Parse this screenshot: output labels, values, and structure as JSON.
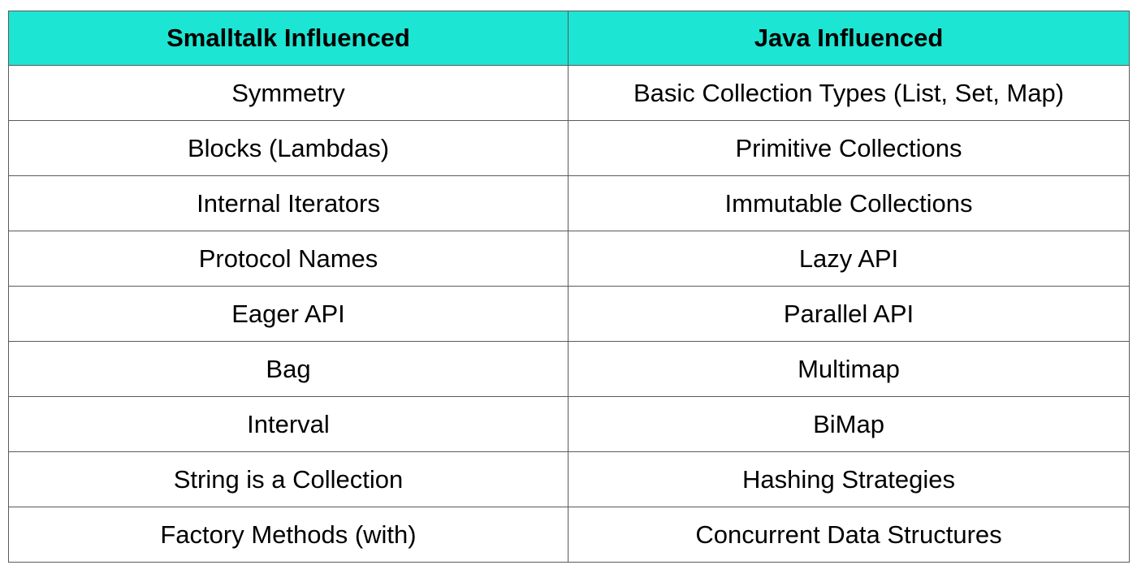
{
  "table": {
    "headers": [
      "Smalltalk Influenced",
      "Java Influenced"
    ],
    "rows": [
      [
        "Symmetry",
        "Basic Collection Types (List, Set, Map)"
      ],
      [
        "Blocks (Lambdas)",
        "Primitive Collections"
      ],
      [
        "Internal Iterators",
        "Immutable Collections"
      ],
      [
        "Protocol Names",
        "Lazy API"
      ],
      [
        "Eager API",
        "Parallel API"
      ],
      [
        "Bag",
        "Multimap"
      ],
      [
        "Interval",
        "BiMap"
      ],
      [
        "String is a Collection",
        "Hashing Strategies"
      ],
      [
        "Factory Methods (with)",
        "Concurrent Data Structures"
      ]
    ]
  },
  "colors": {
    "header_background": "#1de5d3",
    "border": "#5a5a5a",
    "text": "#000000"
  }
}
